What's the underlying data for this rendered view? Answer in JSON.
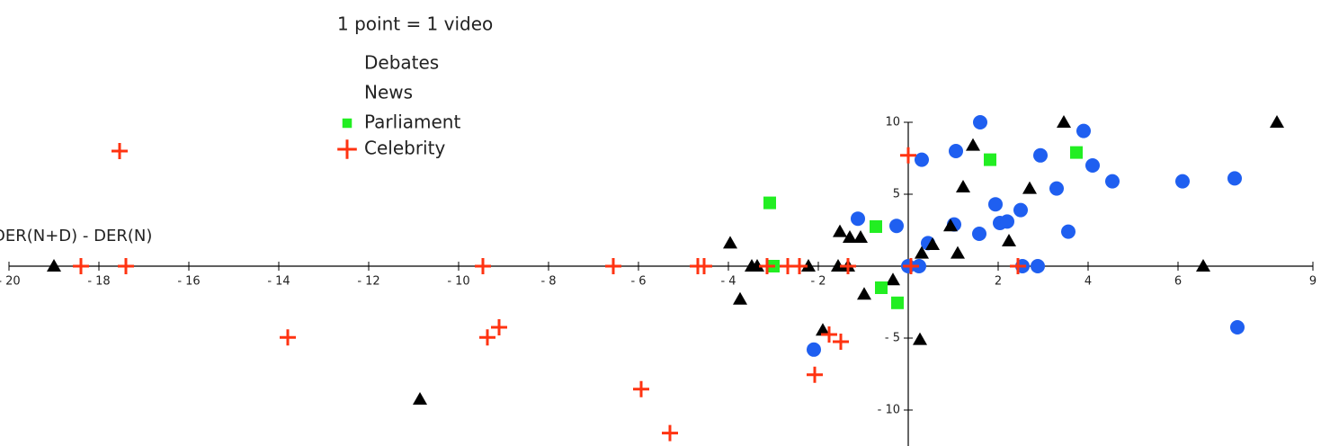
{
  "chart_data": {
    "type": "scatter",
    "title": "1 point = 1 video",
    "y_label": "DER(N+D) - DER(N)",
    "xlim": [
      -20,
      9
    ],
    "ylim": [
      -12.5,
      10
    ],
    "xticks": [
      {
        "value": -20,
        "label": "- 20"
      },
      {
        "value": -18,
        "label": "- 18"
      },
      {
        "value": -16,
        "label": "- 16"
      },
      {
        "value": -14,
        "label": "- 14"
      },
      {
        "value": -12,
        "label": "- 12"
      },
      {
        "value": -10,
        "label": "- 10"
      },
      {
        "value": -8,
        "label": "- 8"
      },
      {
        "value": -6,
        "label": "- 6"
      },
      {
        "value": -4,
        "label": "- 4"
      },
      {
        "value": -2,
        "label": "- 2"
      },
      2,
      4,
      6,
      9
    ],
    "yticks": [
      {
        "value": -10,
        "label": "- 10"
      },
      {
        "value": -5,
        "label": "- 5"
      },
      5,
      10
    ],
    "series": [
      {
        "name": "Debates",
        "color": "#1f5ff0",
        "marker": "circle",
        "legend_marker": false,
        "x": [
          0.3,
          1.06,
          1.6,
          3.9,
          2.94,
          4.1,
          4.54,
          6.1,
          7.26,
          3.3,
          1.94,
          2.5,
          2.04,
          2.2,
          1.02,
          1.58,
          3.56,
          -0.26,
          -1.12,
          0.44,
          0,
          0.24,
          2.54,
          2.88,
          -2.1,
          7.32
        ],
        "values": [
          7.4,
          8.0,
          10,
          9.4,
          7.7,
          7.0,
          5.9,
          5.9,
          6.1,
          5.4,
          4.3,
          3.9,
          3.0,
          3.1,
          2.9,
          2.25,
          2.4,
          2.8,
          3.3,
          1.6,
          0,
          0,
          0,
          0,
          -5.8,
          -4.25
        ]
      },
      {
        "name": "News",
        "color": "#000000",
        "marker": "triangle",
        "legend_marker": false,
        "x": [
          8.2,
          3.46,
          1.44,
          1.22,
          2.7,
          0.94,
          2.24,
          1.1,
          0.54,
          0.3,
          -1.52,
          -1.3,
          -1.06,
          -3.96,
          -3.48,
          -3.36,
          -2.22,
          -1.56,
          -1.34,
          6.56,
          -19,
          -0.34,
          -0.98,
          -3.74,
          -1.9,
          0.26,
          -10.86
        ],
        "values": [
          10,
          10,
          8.4,
          5.5,
          5.4,
          2.8,
          1.75,
          0.9,
          1.5,
          0.9,
          2.4,
          2.0,
          2.0,
          1.6,
          0,
          0,
          0,
          0,
          0,
          0,
          0,
          -0.95,
          -1.95,
          -2.3,
          -4.45,
          -5.1,
          -9.25
        ]
      },
      {
        "name": "Parliament",
        "color": "#22ee22",
        "marker": "square",
        "legend_marker": true,
        "x": [
          -3.08,
          1.82,
          3.74,
          -0.72,
          -3.0,
          -0.6,
          -0.24
        ],
        "values": [
          4.4,
          7.4,
          7.9,
          2.75,
          0,
          -1.5,
          -2.55
        ]
      },
      {
        "name": "Celebrity",
        "color": "#ff3311",
        "marker": "plus",
        "legend_marker": true,
        "x": [
          -17.54,
          0,
          -18.4,
          -17.4,
          -9.46,
          -6.56,
          -4.68,
          -4.54,
          -3.14,
          -2.68,
          -2.42,
          -1.34,
          0.06,
          2.44,
          -13.8,
          -9.36,
          -9.1,
          -1.76,
          -1.5,
          -2.08,
          -5.94,
          -5.3
        ],
        "values": [
          8.0,
          7.7,
          0,
          0,
          0,
          0,
          0,
          0,
          0,
          0,
          0,
          0,
          0,
          0,
          -4.95,
          -4.95,
          -4.25,
          -4.75,
          -5.25,
          -7.55,
          -8.55,
          -11.6
        ]
      }
    ]
  }
}
